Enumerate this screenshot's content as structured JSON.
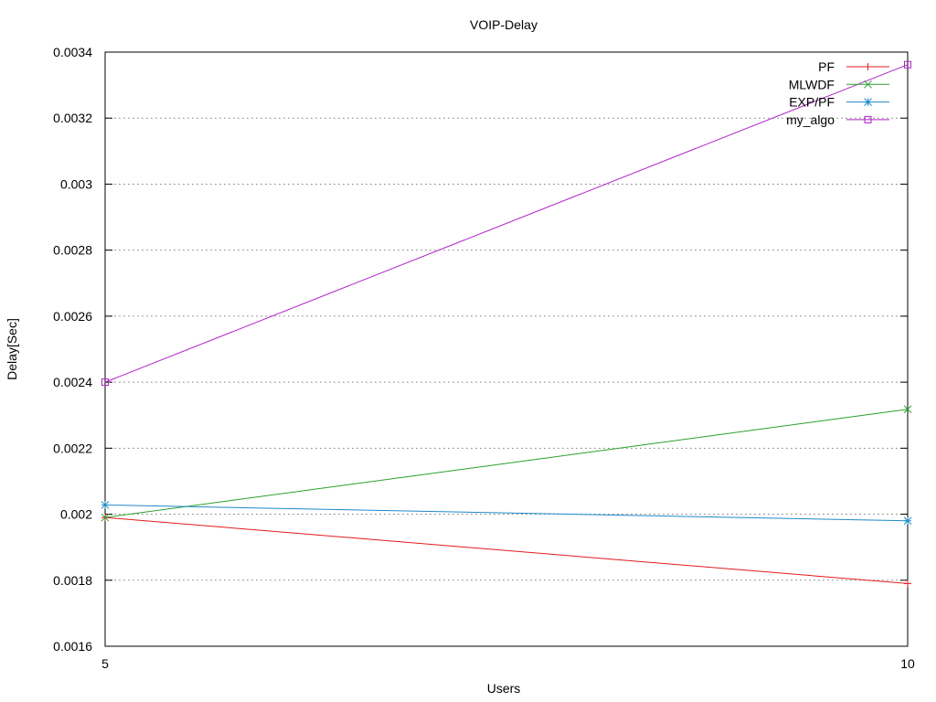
{
  "chart_data": {
    "type": "line",
    "title": "VOIP-Delay",
    "xlabel": "Users",
    "ylabel": "Delay[Sec]",
    "x": [
      5,
      10
    ],
    "xlim": [
      5,
      10
    ],
    "ylim": [
      0.0016,
      0.0034
    ],
    "xticks": [
      "5",
      "10"
    ],
    "yticks": [
      "0.0016",
      "0.0018",
      "0.002",
      "0.0022",
      "0.0024",
      "0.0026",
      "0.0028",
      "0.003",
      "0.0032",
      "0.0034"
    ],
    "grid": true,
    "legend_position": "top-right",
    "series": [
      {
        "name": "PF",
        "values": [
          0.00199,
          0.00179
        ],
        "color": "#e41a1c",
        "marker": "plus"
      },
      {
        "name": "MLWDF",
        "values": [
          0.00199,
          0.002318
        ],
        "color": "#2ca02c",
        "marker": "cross"
      },
      {
        "name": "EXP/PF",
        "values": [
          0.002028,
          0.00198
        ],
        "color": "#1f8ac8",
        "marker": "star"
      },
      {
        "name": "my_algo",
        "values": [
          0.0024,
          0.003362
        ],
        "color": "#b020c8",
        "marker": "square"
      }
    ]
  }
}
